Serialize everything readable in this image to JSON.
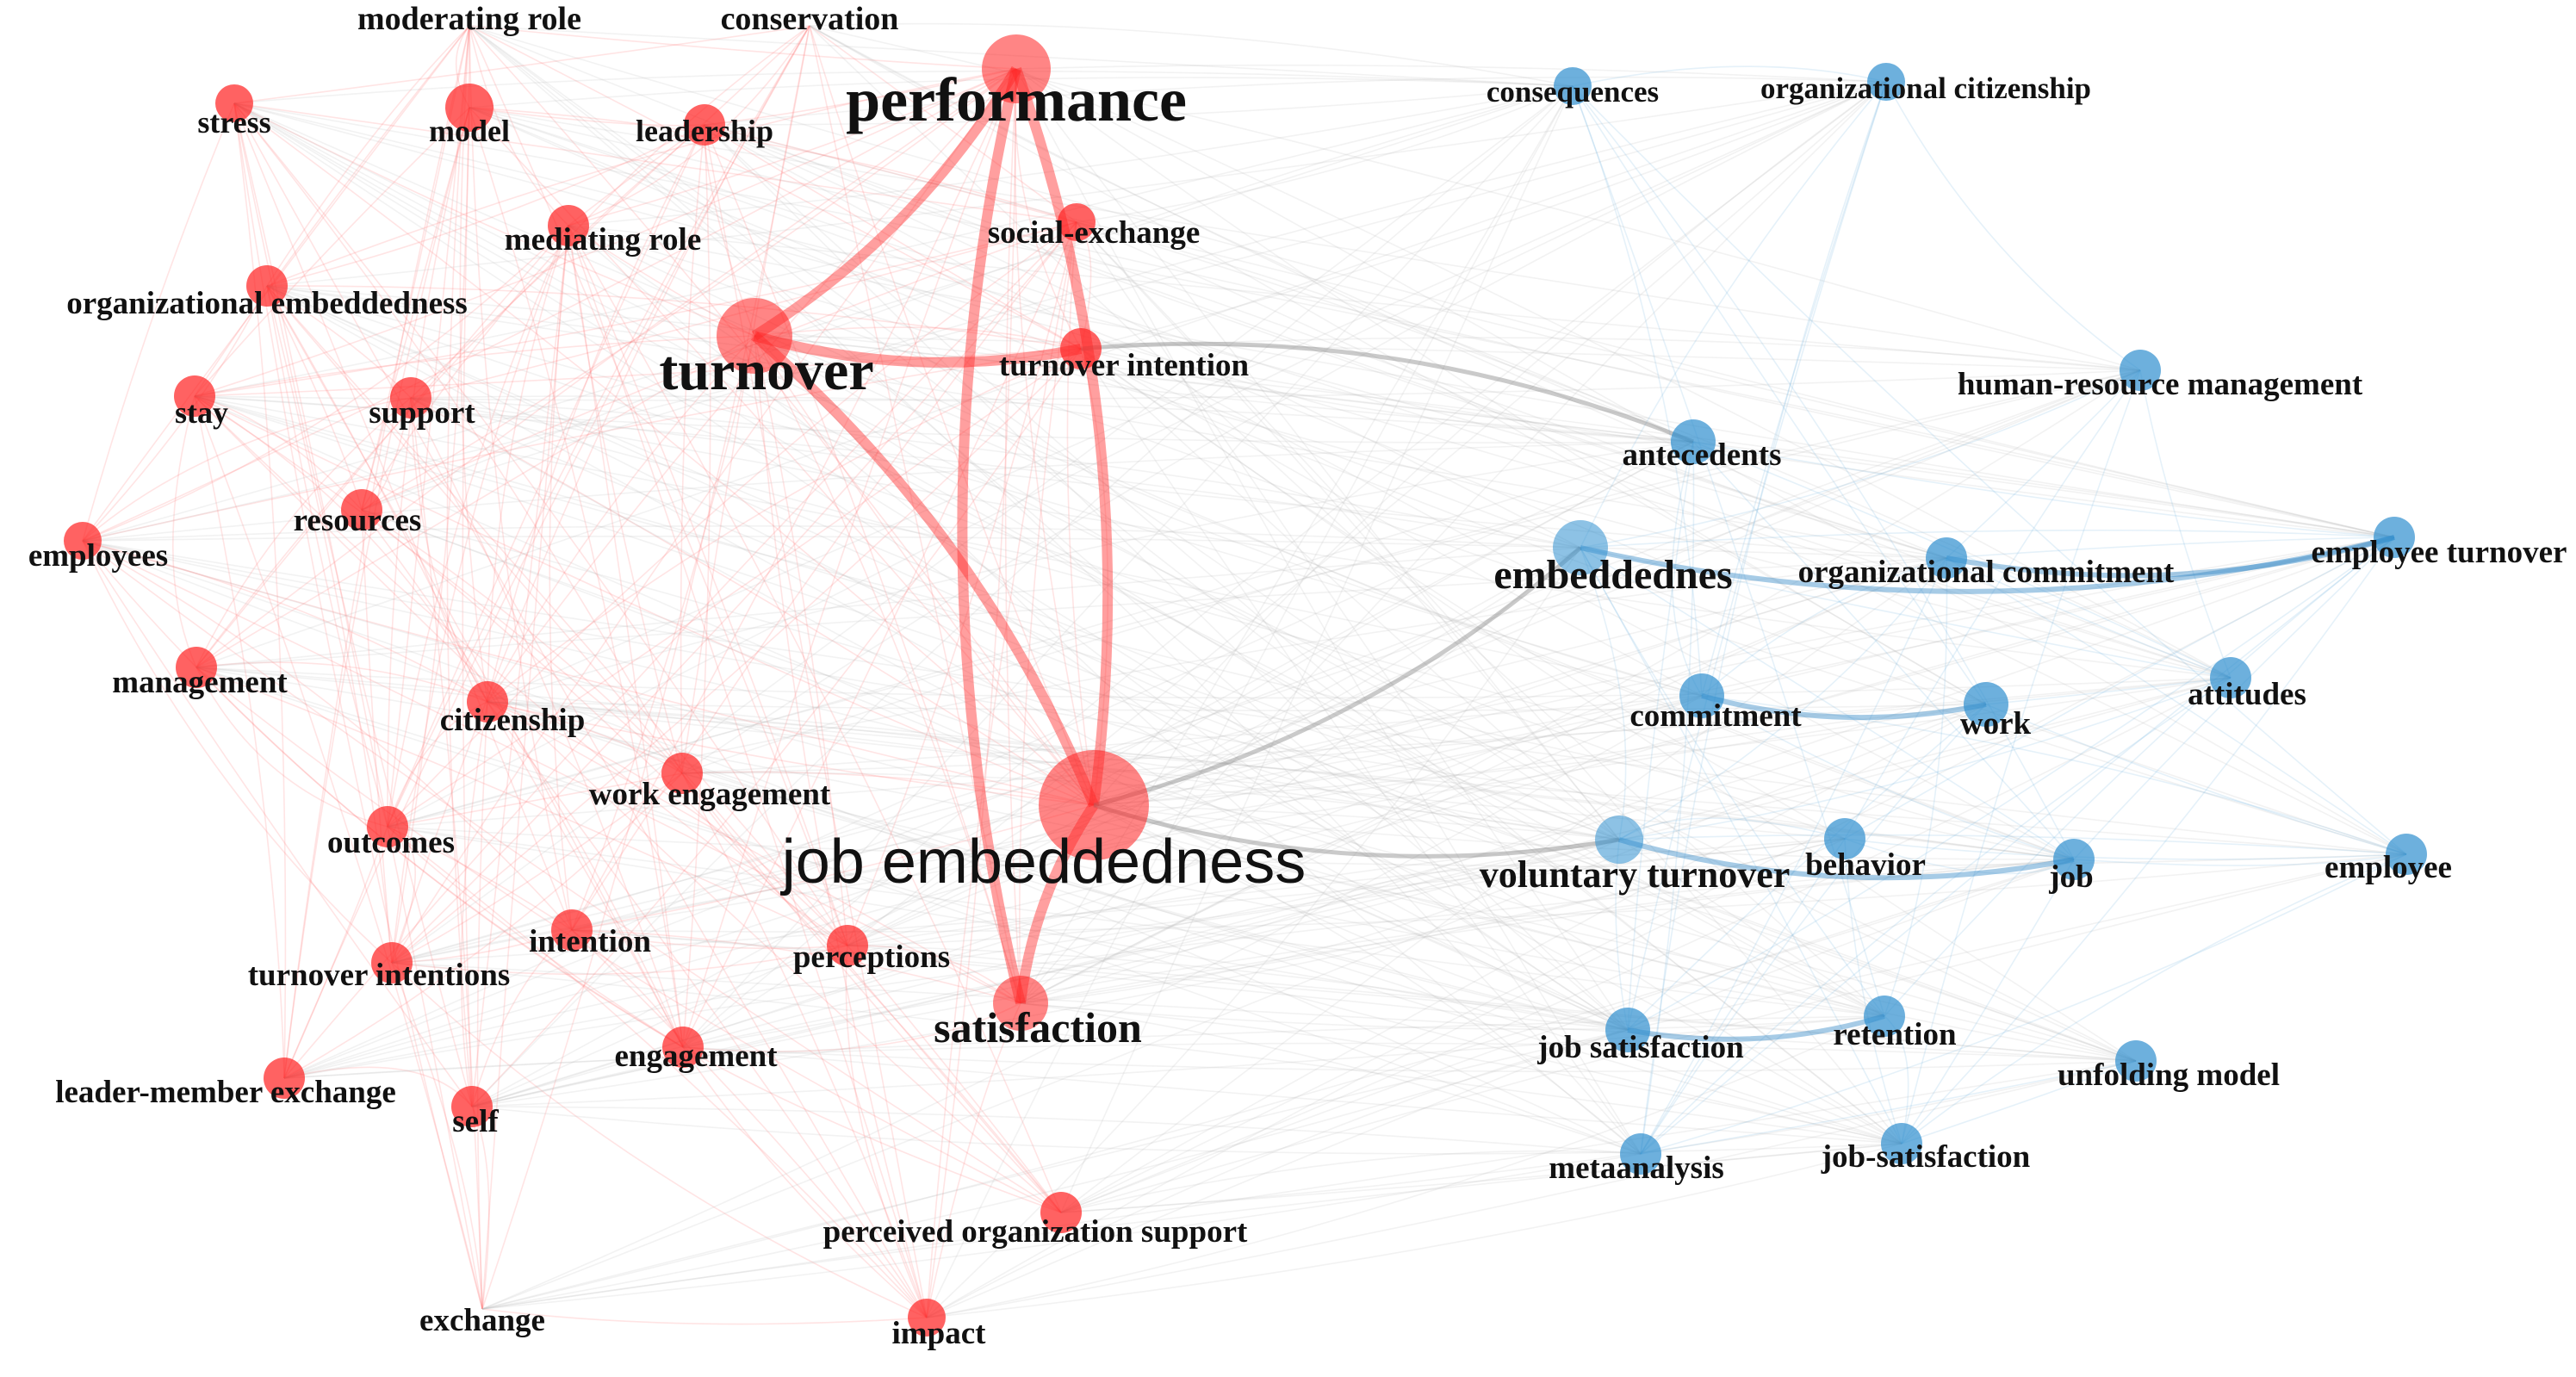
{
  "diagram": {
    "type": "keyword co-occurrence network",
    "clusters": [
      {
        "id": "red",
        "color": "#ff2020"
      },
      {
        "id": "blue",
        "color": "#2f8fcf"
      }
    ],
    "nodes": [
      {
        "id": "moderating-role",
        "label": "moderating role",
        "cluster": "red",
        "weight": 1
      },
      {
        "id": "conservation",
        "label": "conservation",
        "cluster": "red",
        "weight": 1
      },
      {
        "id": "stress",
        "label": "stress",
        "cluster": "red",
        "weight": 1
      },
      {
        "id": "model",
        "label": "model",
        "cluster": "red",
        "weight": 1
      },
      {
        "id": "leadership",
        "label": "leadership",
        "cluster": "red",
        "weight": 1
      },
      {
        "id": "performance",
        "label": "performance",
        "cluster": "red",
        "weight": 3
      },
      {
        "id": "mediating-role",
        "label": "mediating role",
        "cluster": "red",
        "weight": 1
      },
      {
        "id": "social-exchange",
        "label": "social-exchange",
        "cluster": "red",
        "weight": 1
      },
      {
        "id": "organizational-embeddedness",
        "label": "organizational embeddedness",
        "cluster": "red",
        "weight": 1
      },
      {
        "id": "turnover",
        "label": "turnover",
        "cluster": "red",
        "weight": 4
      },
      {
        "id": "turnover-intention",
        "label": "turnover intention",
        "cluster": "red",
        "weight": 1
      },
      {
        "id": "stay",
        "label": "stay",
        "cluster": "red",
        "weight": 1
      },
      {
        "id": "support",
        "label": "support",
        "cluster": "red",
        "weight": 1
      },
      {
        "id": "resources",
        "label": "resources",
        "cluster": "red",
        "weight": 1
      },
      {
        "id": "employees",
        "label": "employees",
        "cluster": "red",
        "weight": 1
      },
      {
        "id": "management",
        "label": "management",
        "cluster": "red",
        "weight": 1
      },
      {
        "id": "citizenship",
        "label": "citizenship",
        "cluster": "red",
        "weight": 1
      },
      {
        "id": "work-engagement",
        "label": "work engagement",
        "cluster": "red",
        "weight": 1
      },
      {
        "id": "outcomes",
        "label": "outcomes",
        "cluster": "red",
        "weight": 1
      },
      {
        "id": "job-embeddedness",
        "label": "job embeddedness",
        "cluster": "red",
        "weight": 8
      },
      {
        "id": "intention",
        "label": "intention",
        "cluster": "red",
        "weight": 1
      },
      {
        "id": "turnover-intentions",
        "label": "turnover intentions",
        "cluster": "red",
        "weight": 1
      },
      {
        "id": "perceptions",
        "label": "perceptions",
        "cluster": "red",
        "weight": 1
      },
      {
        "id": "satisfaction",
        "label": "satisfaction",
        "cluster": "red",
        "weight": 2
      },
      {
        "id": "engagement",
        "label": "engagement",
        "cluster": "red",
        "weight": 1
      },
      {
        "id": "leader-member-exchange",
        "label": "leader-member exchange",
        "cluster": "red",
        "weight": 1
      },
      {
        "id": "self",
        "label": "self",
        "cluster": "red",
        "weight": 1
      },
      {
        "id": "perceived-organization-support",
        "label": "perceived organization support",
        "cluster": "red",
        "weight": 1
      },
      {
        "id": "exchange",
        "label": "exchange",
        "cluster": "red",
        "weight": 1
      },
      {
        "id": "impact",
        "label": "impact",
        "cluster": "red",
        "weight": 1
      },
      {
        "id": "consequences",
        "label": "consequences",
        "cluster": "blue",
        "weight": 1
      },
      {
        "id": "organizational-citizenship",
        "label": "organizational citizenship",
        "cluster": "blue",
        "weight": 1
      },
      {
        "id": "human-resource-management",
        "label": "human-resource management",
        "cluster": "blue",
        "weight": 1
      },
      {
        "id": "antecedents",
        "label": "antecedents",
        "cluster": "blue",
        "weight": 1
      },
      {
        "id": "embeddednes",
        "label": "embeddednes",
        "cluster": "blue",
        "weight": 2
      },
      {
        "id": "organizational-commitment",
        "label": "organizational commitment",
        "cluster": "blue",
        "weight": 1
      },
      {
        "id": "employee-turnover",
        "label": "employee turnover",
        "cluster": "blue",
        "weight": 1
      },
      {
        "id": "commitment",
        "label": "commitment",
        "cluster": "blue",
        "weight": 1
      },
      {
        "id": "work",
        "label": "work",
        "cluster": "blue",
        "weight": 1
      },
      {
        "id": "attitudes",
        "label": "attitudes",
        "cluster": "blue",
        "weight": 1
      },
      {
        "id": "voluntary-turnover",
        "label": "voluntary turnover",
        "cluster": "blue",
        "weight": 2
      },
      {
        "id": "behavior",
        "label": "behavior",
        "cluster": "blue",
        "weight": 1
      },
      {
        "id": "job",
        "label": "job",
        "cluster": "blue",
        "weight": 1
      },
      {
        "id": "employee",
        "label": "employee",
        "cluster": "blue",
        "weight": 1
      },
      {
        "id": "job-satisfaction",
        "label": "job satisfaction",
        "cluster": "blue",
        "weight": 1
      },
      {
        "id": "retention",
        "label": "retention",
        "cluster": "blue",
        "weight": 1
      },
      {
        "id": "unfolding-model",
        "label": "unfolding model",
        "cluster": "blue",
        "weight": 1
      },
      {
        "id": "metaanalysis",
        "label": "metaanalysis",
        "cluster": "blue",
        "weight": 1
      },
      {
        "id": "job-satisfaction-2",
        "label": "job-satisfaction",
        "cluster": "blue",
        "weight": 1
      }
    ],
    "strong_links": [
      [
        "job-embeddedness",
        "turnover"
      ],
      [
        "job-embeddedness",
        "performance"
      ],
      [
        "job-embeddedness",
        "satisfaction"
      ],
      [
        "job-embeddedness",
        "voluntary-turnover"
      ],
      [
        "job-embeddedness",
        "embeddednes"
      ],
      [
        "turnover",
        "turnover-intention"
      ],
      [
        "turnover",
        "performance"
      ],
      [
        "performance",
        "satisfaction"
      ],
      [
        "embeddednes",
        "employee-turnover"
      ],
      [
        "commitment",
        "work"
      ],
      [
        "voluntary-turnover",
        "job"
      ],
      [
        "job-satisfaction",
        "retention"
      ],
      [
        "organizational-commitment",
        "employee-turnover"
      ],
      [
        "antecedents",
        "turnover-intention"
      ]
    ]
  }
}
